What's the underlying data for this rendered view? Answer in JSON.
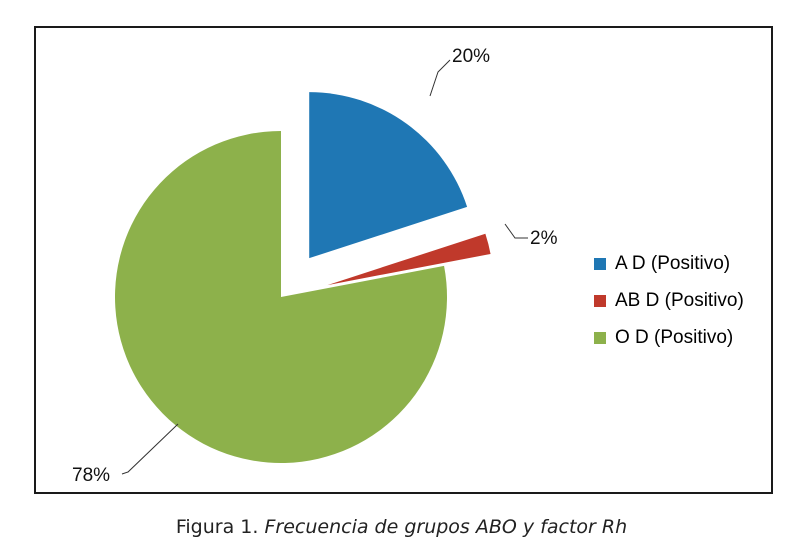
{
  "chart_data": {
    "type": "pie",
    "exploded": true,
    "categories": [
      "A D (Positivo)",
      "AB D (Positivo)",
      "O D (Positivo)"
    ],
    "values": [
      20,
      2,
      78
    ],
    "labels": [
      "20%",
      "2%",
      "78%"
    ],
    "colors": [
      "#1f77b4",
      "#c0392b",
      "#8db14b"
    ],
    "legend_position": "right"
  },
  "caption": {
    "prefix": "Figura 1.",
    "text": "Frecuencia de grupos ABO y factor Rh"
  }
}
